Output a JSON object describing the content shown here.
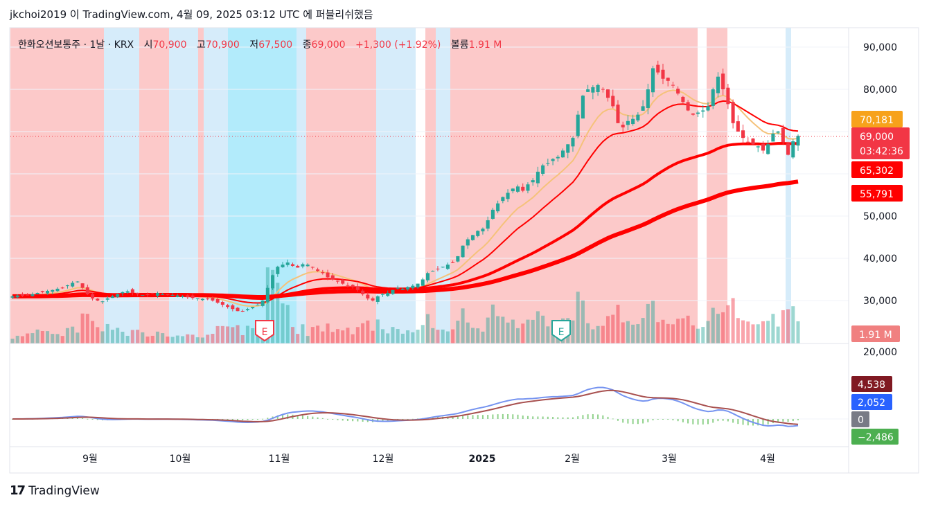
{
  "header": {
    "text": "jkchoi2019 이 TradingView.com, 4월 09, 2025 03:12 UTC 에 퍼블리쉬했음"
  },
  "legend": {
    "symbol": "한화오션보통주 · 1날 · KRX",
    "open_label": "시",
    "open": "70,900",
    "high_label": "고",
    "high": "70,900",
    "low_label": "저",
    "low": "67,500",
    "close_label": "종",
    "close": "69,000",
    "change": "+1,300 (+1.92%)",
    "volume_label": "볼륨",
    "volume": "1.91 M"
  },
  "brand": {
    "name": "TradingView"
  },
  "colors": {
    "up": "#26a69a",
    "down": "#f23645",
    "ma_red": "#ff0000",
    "ma_gold": "#f5c27a",
    "ma_purple": "#8e7cf0",
    "bg_red": "#fcc9c9",
    "bg_lightblue": "#d6ecfa",
    "bg_cyan": "#b2ebfb",
    "macd_line": "#7593f0",
    "signal_line": "#a8504f",
    "hist": "#8fd18a"
  },
  "chart_data": {
    "type": "candlestick",
    "price_axis": {
      "ticks": [
        "90,000",
        "80,000",
        "70,000",
        "60,000",
        "50,000",
        "40,000",
        "30,000"
      ],
      "ylim": [
        22500,
        96000
      ]
    },
    "time_axis": {
      "ticks": [
        "9월",
        "10월",
        "11월",
        "12월",
        "2025",
        "2월",
        "3월",
        "4월"
      ]
    },
    "price_labels": [
      {
        "value": 70181,
        "text": "70,181",
        "color": "#f7a21b"
      },
      {
        "value": 69000,
        "text": "69,000",
        "countdown": "03:42:36",
        "color": "#f23645"
      },
      {
        "value": 65302,
        "text": "65,302",
        "color": "#ff0000"
      },
      {
        "value": 55791,
        "text": "55,791",
        "color": "#ff0000"
      }
    ],
    "volume_label": "1.91 M",
    "earnings_markers": [
      "E",
      "E"
    ],
    "close_series": [
      31000,
      31200,
      31100,
      31300,
      31500,
      31800,
      32000,
      32300,
      32500,
      32800,
      33000,
      33600,
      34200,
      34500,
      33000,
      31500,
      30500,
      30000,
      29800,
      30500,
      31000,
      31500,
      32000,
      32200,
      31800,
      31500,
      31300,
      31400,
      31600,
      31800,
      31500,
      31400,
      31300,
      31200,
      31000,
      30800,
      30600,
      30500,
      30400,
      30300,
      30000,
      29500,
      29000,
      28500,
      28000,
      27500,
      27500,
      28000,
      28500,
      29000,
      30000,
      33000,
      36000,
      38000,
      38500,
      39000,
      38200,
      37800,
      38600,
      38500,
      37900,
      37000,
      36500,
      35500,
      35000,
      34500,
      34000,
      33500,
      33200,
      32500,
      31500,
      30500,
      30000,
      31000,
      31500,
      31800,
      32500,
      33000,
      32800,
      33200,
      33500,
      34000,
      35000,
      36500,
      37000,
      37500,
      38000,
      38500,
      39000,
      40500,
      43000,
      44500,
      45500,
      46500,
      47000,
      49000,
      51500,
      53000,
      54500,
      55500,
      56500,
      57000,
      56000,
      57500,
      58500,
      60500,
      62000,
      62500,
      63500,
      64000,
      65500,
      67000,
      68500,
      74000,
      78500,
      80000,
      80500,
      81000,
      80000,
      78000,
      76000,
      72000,
      71000,
      72500,
      73000,
      74000,
      76000,
      80000,
      85000,
      84000,
      82500,
      82000,
      81000,
      79000,
      77000,
      75000,
      74000,
      74500,
      75000,
      76000,
      80000,
      83000,
      80000,
      76500,
      72000,
      70000,
      68500,
      67500,
      67000,
      66500,
      65500,
      67000,
      69500,
      70000,
      67500,
      64500,
      67700,
      69000
    ],
    "indicator": {
      "name": "MACD",
      "axis_ticks": [
        "20,000"
      ],
      "labels": [
        {
          "text": "4,538",
          "color": "#801922"
        },
        {
          "text": "2,052",
          "color": "#2962ff"
        },
        {
          "text": "0",
          "color": "#787b86"
        },
        {
          "text": "−2,486",
          "color": "#4caf50"
        }
      ]
    }
  }
}
